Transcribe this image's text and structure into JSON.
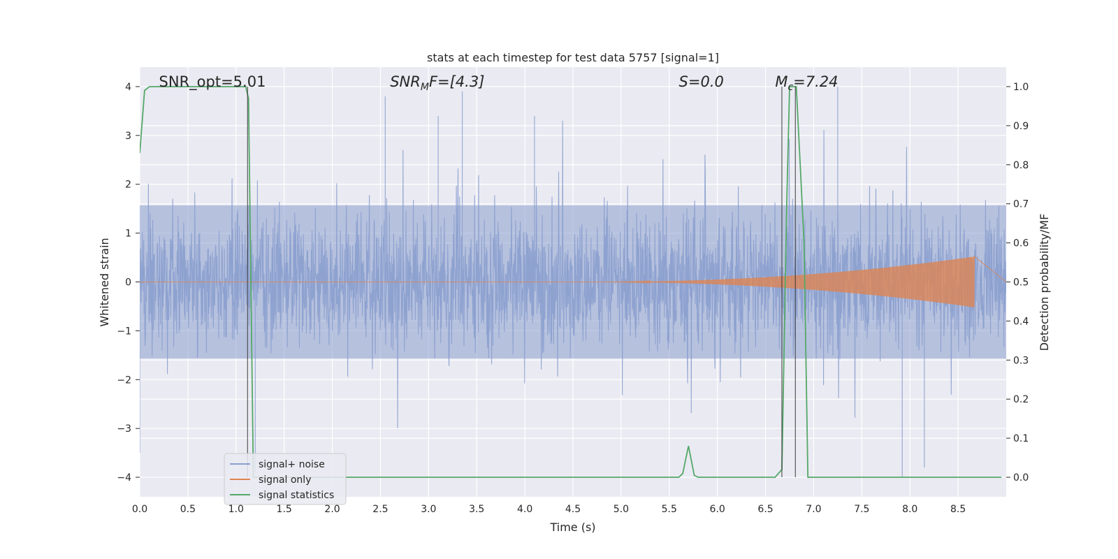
{
  "chart_data": {
    "type": "line",
    "title": "stats at each timestep for test data 5757 [signal=1]",
    "xlabel": "Time (s)",
    "ylabel_left": "Whitened strain",
    "ylabel_right": "Detection probability/MF",
    "xlim": [
      0.0,
      9.0
    ],
    "ylim_left": [
      -4.4,
      4.4
    ],
    "ylim_right": [
      -0.05,
      1.05
    ],
    "x_ticks": [
      "0.0",
      "0.5",
      "1.0",
      "1.5",
      "2.0",
      "2.5",
      "3.0",
      "3.5",
      "4.0",
      "4.5",
      "5.0",
      "5.5",
      "6.0",
      "6.5",
      "7.0",
      "7.5",
      "8.0",
      "8.5"
    ],
    "y_left_ticks": [
      "4",
      "3",
      "2",
      "1",
      "0",
      "−1",
      "−2",
      "−3",
      "−4"
    ],
    "y_left_tick_values": [
      4,
      3,
      2,
      1,
      0,
      -1,
      -2,
      -3,
      -4
    ],
    "y_right_ticks": [
      "1.0",
      "0.9",
      "0.8",
      "0.7",
      "0.6",
      "0.5",
      "0.4",
      "0.3",
      "0.2",
      "0.1",
      "0.0"
    ],
    "y_right_tick_values": [
      1.0,
      0.9,
      0.8,
      0.7,
      0.6,
      0.5,
      0.4,
      0.3,
      0.2,
      0.1,
      0.0
    ],
    "grid": true,
    "legend_position": "lower-left",
    "annotations": [
      {
        "prefix": "SNR_opt=5.01",
        "sub": "",
        "suffix": "",
        "italic": false,
        "x": 0.2
      },
      {
        "prefix": "SNR",
        "sub": "M",
        "suffix": "F=[4.3]",
        "italic": true,
        "x": 2.6
      },
      {
        "prefix": "S",
        "sub": "",
        "suffix": "=0.0",
        "italic": true,
        "x": 5.6
      },
      {
        "prefix": "M",
        "sub": "c",
        "suffix": "=7.24",
        "italic": true,
        "x": 6.6
      }
    ],
    "series": [
      {
        "name": "signal+ noise",
        "color": "#8a9fce",
        "axis": "left",
        "style": "dense-noise",
        "core_amplitude": 1.6,
        "extreme_peaks": [
          [
            3.35,
            3.9
          ],
          [
            2.55,
            3.8
          ],
          [
            7.25,
            4.0
          ],
          [
            1.2,
            -3.9
          ],
          [
            7.92,
            -4.0
          ],
          [
            0.0,
            -3.5
          ],
          [
            8.15,
            -3.8
          ],
          [
            3.1,
            3.4
          ],
          [
            4.1,
            3.4
          ]
        ]
      },
      {
        "name": "signal only",
        "color": "#dd8452",
        "axis": "left",
        "style": "chirp",
        "chirp_start": 4.6,
        "chirp_end": 8.67,
        "chirp_peak_amplitude": 0.52
      },
      {
        "name": "signal statistics",
        "color": "#55a868",
        "axis": "right",
        "x": [
          0.0,
          0.05,
          0.1,
          0.2,
          0.5,
          0.9,
          1.0,
          1.1,
          1.13,
          1.18,
          1.25,
          2.0,
          3.0,
          4.0,
          5.0,
          5.6,
          5.64,
          5.7,
          5.76,
          5.8,
          5.9,
          6.6,
          6.67,
          6.72,
          6.75,
          6.78,
          6.82,
          6.86,
          6.9,
          6.94,
          7.0,
          8.95
        ],
        "values": [
          0.83,
          0.99,
          1.0,
          1.0,
          1.0,
          1.0,
          1.0,
          1.0,
          0.97,
          0.0,
          0.0,
          0.0,
          0.0,
          0.0,
          0.0,
          0.0,
          0.01,
          0.08,
          0.005,
          0.0,
          0.0,
          0.0,
          0.02,
          0.7,
          1.0,
          1.0,
          1.0,
          0.8,
          0.6,
          0.0,
          0.0,
          0.0
        ]
      }
    ],
    "vertical_markers": [
      1.12,
      6.67,
      6.81
    ]
  }
}
